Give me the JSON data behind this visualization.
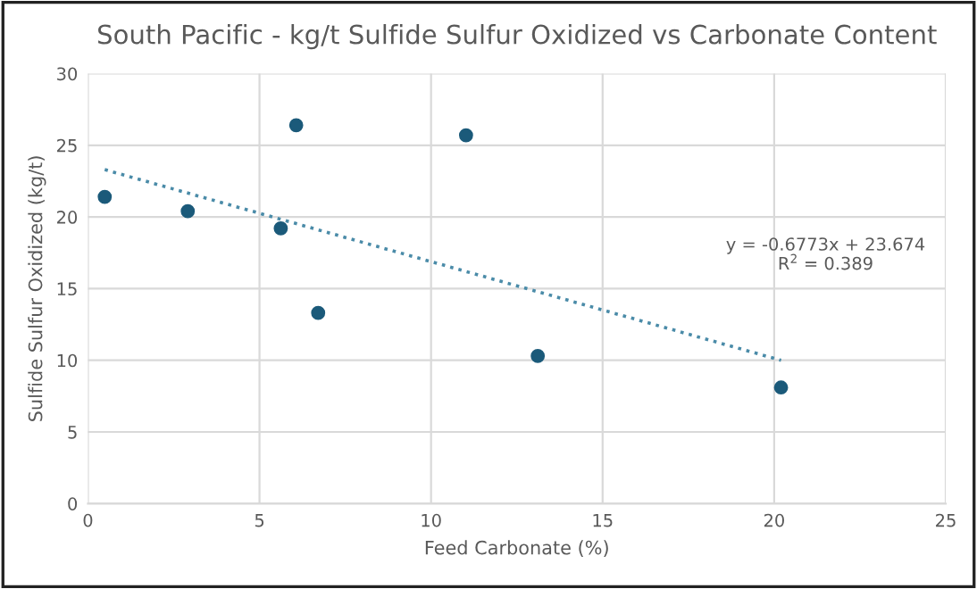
{
  "chart_data": {
    "type": "scatter",
    "title": "South Pacific - kg/t Sulfide Sulfur Oxidized vs Carbonate Content",
    "xlabel": "Feed Carbonate (%)",
    "ylabel": "Sulfide Sulfur Oxidized (kg/t)",
    "series": [
      {
        "color": "#1b5a7a",
        "marker": "circle",
        "x": [
          0.49,
          2.91,
          5.62,
          6.07,
          6.71,
          11.02,
          13.11,
          20.2
        ],
        "values": [
          21.4,
          20.4,
          19.2,
          26.4,
          13.3,
          25.7,
          10.3,
          8.1
        ]
      },
      {
        "type": "line",
        "color": "#4a8ba8",
        "line_style": "dotted",
        "marker": "none",
        "x": [
          0.49,
          20.2
        ],
        "values": [
          23.3,
          10.0
        ]
      }
    ],
    "annotations": [
      "y = -0.6773x + 23.674",
      "R$^{2}$ = 0.389"
    ],
    "xlim": [
      0,
      25
    ],
    "xticks": [
      0,
      5,
      10,
      15,
      20,
      25
    ],
    "ylim": [
      0,
      30
    ],
    "yticks": [
      0,
      5,
      10,
      15,
      20,
      25,
      30
    ],
    "grid": true,
    "legend": false
  }
}
